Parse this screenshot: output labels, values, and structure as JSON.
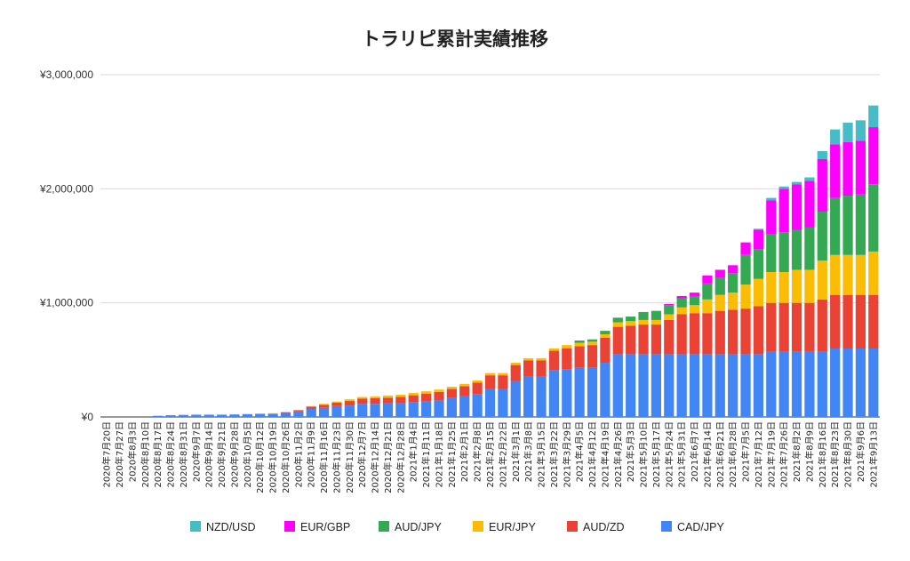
{
  "colors": {
    "NZD/USD": "#46bdc6",
    "EUR/GBP": "#ff00ff",
    "AUD/JPY": "#34a853",
    "EUR/JPY": "#fbbc04",
    "AUD/ZD": "#ea4335",
    "CAD/JPY": "#4285f4",
    "grid": "#d9d9d9",
    "axis": "#333333"
  },
  "chart_data": {
    "type": "bar",
    "stacked": true,
    "title": "トラリピ累計実績推移",
    "xlabel": "",
    "ylabel": "",
    "ylim": [
      0,
      3000000
    ],
    "yticks": [
      0,
      1000000,
      2000000,
      3000000
    ],
    "ytick_labels": [
      "¥0",
      "¥1,000,000",
      "¥2,000,000",
      "¥3,000,000"
    ],
    "grid": true,
    "legend_position": "bottom",
    "categories": [
      "2020年7月20日",
      "2020年7月27日",
      "2020年8月3日",
      "2020年8月10日",
      "2020年8月17日",
      "2020年8月24日",
      "2020年8月31日",
      "2020年9月7日",
      "2020年9月14日",
      "2020年9月21日",
      "2020年9月28日",
      "2020年10月5日",
      "2020年10月12日",
      "2020年10月19日",
      "2020年10月26日",
      "2020年11月2日",
      "2020年11月9日",
      "2020年11月16日",
      "2020年11月23日",
      "2020年11月30日",
      "2020年12月7日",
      "2020年12月14日",
      "2020年12月21日",
      "2020年12月28日",
      "2021年1月4日",
      "2021年1月11日",
      "2021年1月18日",
      "2021年1月25日",
      "2021年2月1日",
      "2021年2月8日",
      "2021年2月15日",
      "2021年2月22日",
      "2021年3月1日",
      "2021年3月8日",
      "2021年3月15日",
      "2021年3月22日",
      "2021年3月29日",
      "2021年4月5日",
      "2021年4月12日",
      "2021年4月19日",
      "2021年4月26日",
      "2021年5月3日",
      "2021年5月10日",
      "2021年5月17日",
      "2021年5月24日",
      "2021年5月31日",
      "2021年6月7日",
      "2021年6月14日",
      "2021年6月21日",
      "2021年6月28日",
      "2021年7月5日",
      "2021年7月12日",
      "2021年7月19日",
      "2021年7月26日",
      "2021年8月2日",
      "2021年8月9日",
      "2021年8月16日",
      "2021年8月23日",
      "2021年8月30日",
      "2021年9月6日",
      "2021年9月13日"
    ],
    "x_tick_labels": [
      "2020年7月20日",
      "2020年7月27日",
      "2020年8月3日",
      "2020年8月10日",
      "2020年8月17日",
      "2020年8月24日",
      "2020年8月31日",
      "2020年9月7日",
      "2020年9月14日",
      "2020年9月21日",
      "2020年9月28日",
      "2020年10月5日",
      "2020年10月12日",
      "2020年10月19日",
      "2020年10月26日",
      "2020年11月2日",
      "2020年11月9日",
      "2020年11月16日",
      "2020年11月23日",
      "2020年11月30日",
      "2020年12月7日",
      "2020年12月14日",
      "2020年12月21日",
      "2020年12月28日",
      "2021年1月4日",
      "2021年1月11日",
      "2021年1月18日",
      "2021年1月25日",
      "2021年2月1日",
      "2021年2月8日",
      "2021年2月15日",
      "2021年2月22日",
      "2021年3月1日",
      "2021年3月8日",
      "2021年3月15日",
      "2021年3月22日",
      "2021年3月29日",
      "2021年4月5日",
      "2021年4月12日",
      "2021年4月19日",
      "2021年4月26日",
      "2021年5月3日",
      "2021年5月10日",
      "2021年5月17日",
      "2021年5月24日",
      "2021年5月31日",
      "2021年6月7日",
      "2021年6月14日",
      "2021年6月21日",
      "2021年6月28日",
      "2021年7月5日",
      "2021年7月12日",
      "2021年7月19日",
      "2021年7月26日",
      "2021年8月2日",
      "2021年8月9日",
      "2021年8月16日",
      "2021年8月23日",
      "2021年8月30日",
      "2021年9月6日",
      "2021年9月13日"
    ],
    "series": [
      {
        "name": "CAD/JPY",
        "values": [
          0,
          0,
          0,
          0,
          10000,
          15000,
          18000,
          20000,
          20000,
          20000,
          22000,
          25000,
          28000,
          28000,
          35000,
          48000,
          70000,
          80000,
          95000,
          100000,
          115000,
          115000,
          118000,
          120000,
          130000,
          135000,
          145000,
          165000,
          180000,
          200000,
          245000,
          245000,
          315000,
          355000,
          355000,
          410000,
          420000,
          430000,
          430000,
          475000,
          550000,
          550000,
          550000,
          550000,
          550000,
          550000,
          550000,
          550000,
          550000,
          550000,
          550000,
          550000,
          570000,
          570000,
          570000,
          570000,
          570000,
          600000,
          600000,
          600000,
          600000
        ]
      },
      {
        "name": "AUD/ZD",
        "values": [
          0,
          0,
          0,
          0,
          0,
          0,
          0,
          0,
          0,
          0,
          0,
          0,
          0,
          0,
          5000,
          10000,
          20000,
          25000,
          30000,
          40000,
          45000,
          50000,
          50000,
          55000,
          60000,
          70000,
          75000,
          80000,
          90000,
          100000,
          120000,
          120000,
          140000,
          140000,
          140000,
          170000,
          180000,
          190000,
          200000,
          220000,
          240000,
          250000,
          260000,
          260000,
          300000,
          350000,
          360000,
          360000,
          380000,
          390000,
          400000,
          420000,
          430000,
          430000,
          430000,
          430000,
          460000,
          470000,
          470000,
          470000,
          470000
        ]
      },
      {
        "name": "EUR/JPY",
        "values": [
          0,
          0,
          0,
          0,
          0,
          0,
          0,
          0,
          0,
          0,
          0,
          0,
          0,
          5000,
          5000,
          5000,
          5000,
          10000,
          10000,
          15000,
          15000,
          15000,
          20000,
          20000,
          20000,
          20000,
          20000,
          20000,
          20000,
          20000,
          20000,
          20000,
          20000,
          20000,
          20000,
          20000,
          30000,
          30000,
          30000,
          30000,
          40000,
          40000,
          40000,
          40000,
          50000,
          60000,
          70000,
          120000,
          140000,
          150000,
          210000,
          240000,
          270000,
          270000,
          290000,
          290000,
          340000,
          350000,
          350000,
          350000,
          380000
        ]
      },
      {
        "name": "AUD/JPY",
        "values": [
          0,
          0,
          0,
          0,
          0,
          0,
          0,
          0,
          0,
          0,
          0,
          0,
          0,
          0,
          0,
          0,
          0,
          0,
          0,
          0,
          0,
          0,
          0,
          0,
          0,
          0,
          0,
          0,
          0,
          0,
          0,
          0,
          0,
          0,
          0,
          0,
          0,
          20000,
          20000,
          30000,
          40000,
          40000,
          70000,
          80000,
          80000,
          80000,
          80000,
          140000,
          150000,
          170000,
          260000,
          260000,
          330000,
          350000,
          350000,
          370000,
          430000,
          500000,
          520000,
          530000,
          590000
        ]
      },
      {
        "name": "EUR/GBP",
        "values": [
          0,
          0,
          0,
          0,
          0,
          0,
          0,
          0,
          0,
          0,
          0,
          0,
          0,
          0,
          0,
          0,
          0,
          0,
          0,
          0,
          0,
          0,
          0,
          0,
          0,
          0,
          0,
          0,
          0,
          0,
          0,
          0,
          0,
          0,
          0,
          0,
          0,
          0,
          0,
          0,
          0,
          0,
          0,
          0,
          10000,
          20000,
          30000,
          70000,
          70000,
          70000,
          110000,
          170000,
          300000,
          380000,
          400000,
          410000,
          460000,
          470000,
          470000,
          470000,
          500000
        ]
      },
      {
        "name": "NZD/USD",
        "values": [
          0,
          0,
          0,
          0,
          0,
          0,
          0,
          0,
          0,
          0,
          0,
          0,
          0,
          0,
          0,
          0,
          0,
          0,
          0,
          0,
          0,
          0,
          0,
          0,
          0,
          0,
          0,
          0,
          0,
          0,
          0,
          0,
          0,
          0,
          0,
          0,
          0,
          0,
          0,
          0,
          0,
          0,
          0,
          0,
          0,
          0,
          0,
          0,
          0,
          0,
          0,
          10000,
          20000,
          20000,
          20000,
          30000,
          70000,
          130000,
          170000,
          180000,
          190000
        ]
      }
    ],
    "legend_order": [
      "NZD/USD",
      "EUR/GBP",
      "AUD/JPY",
      "EUR/JPY",
      "AUD/ZD",
      "CAD/JPY"
    ]
  }
}
